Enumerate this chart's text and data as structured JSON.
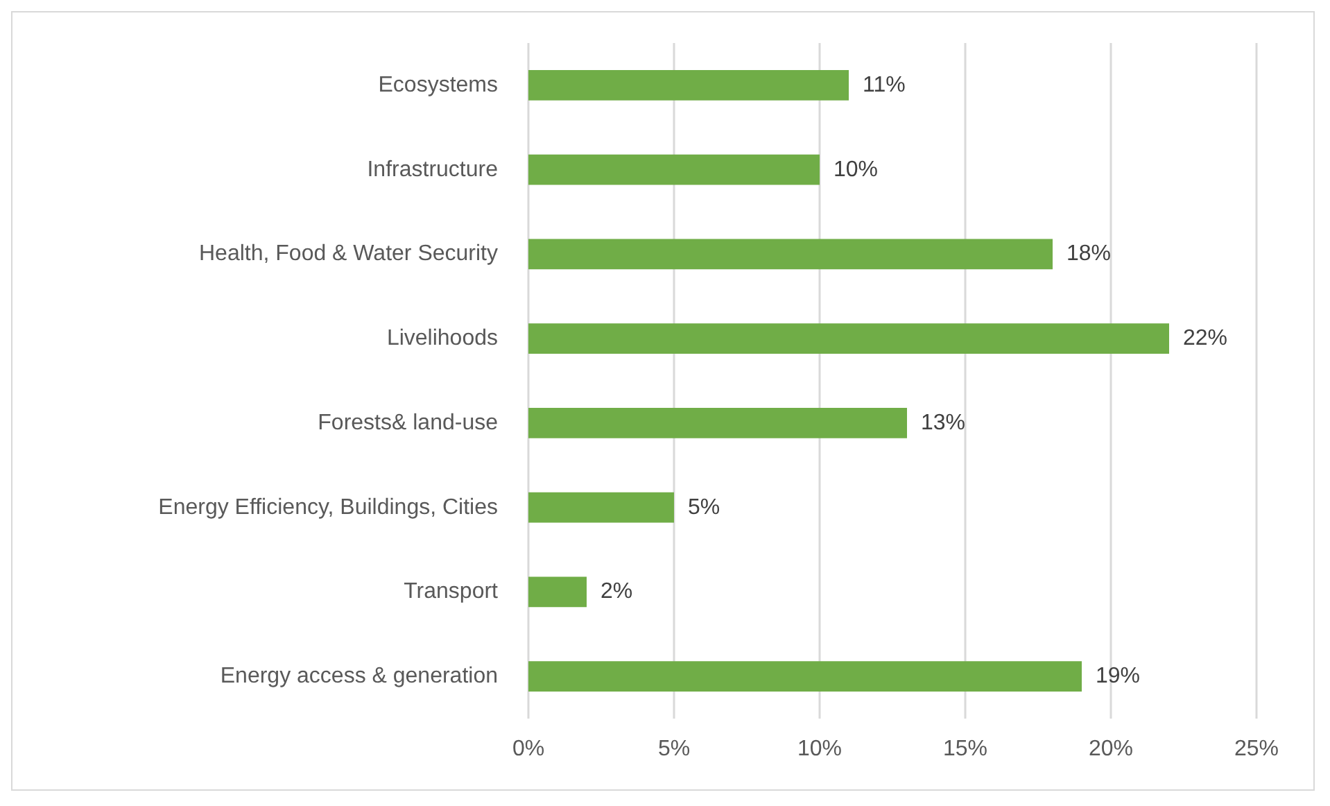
{
  "chart_data": {
    "type": "bar",
    "orientation": "horizontal",
    "categories": [
      "Ecosystems",
      "Infrastructure",
      "Health, Food & Water Security",
      "Livelihoods",
      "Forests& land-use",
      "Energy Efficiency, Buildings, Cities",
      "Transport",
      "Energy access & generation"
    ],
    "values": [
      11,
      10,
      18,
      22,
      13,
      5,
      2,
      19
    ],
    "color": "#70ad47",
    "value_labels": [
      "11%",
      "10%",
      "18%",
      "22%",
      "13%",
      "5%",
      "2%",
      "19%"
    ],
    "xlim": [
      0,
      25
    ],
    "xticks": [
      {
        "value": 0,
        "label": "0%"
      },
      {
        "value": 5,
        "label": "5%"
      },
      {
        "value": 10,
        "label": "10%"
      },
      {
        "value": 15,
        "label": "15%"
      },
      {
        "value": 20,
        "label": "20%"
      },
      {
        "value": 25,
        "label": "25%"
      }
    ],
    "grid": "x"
  }
}
